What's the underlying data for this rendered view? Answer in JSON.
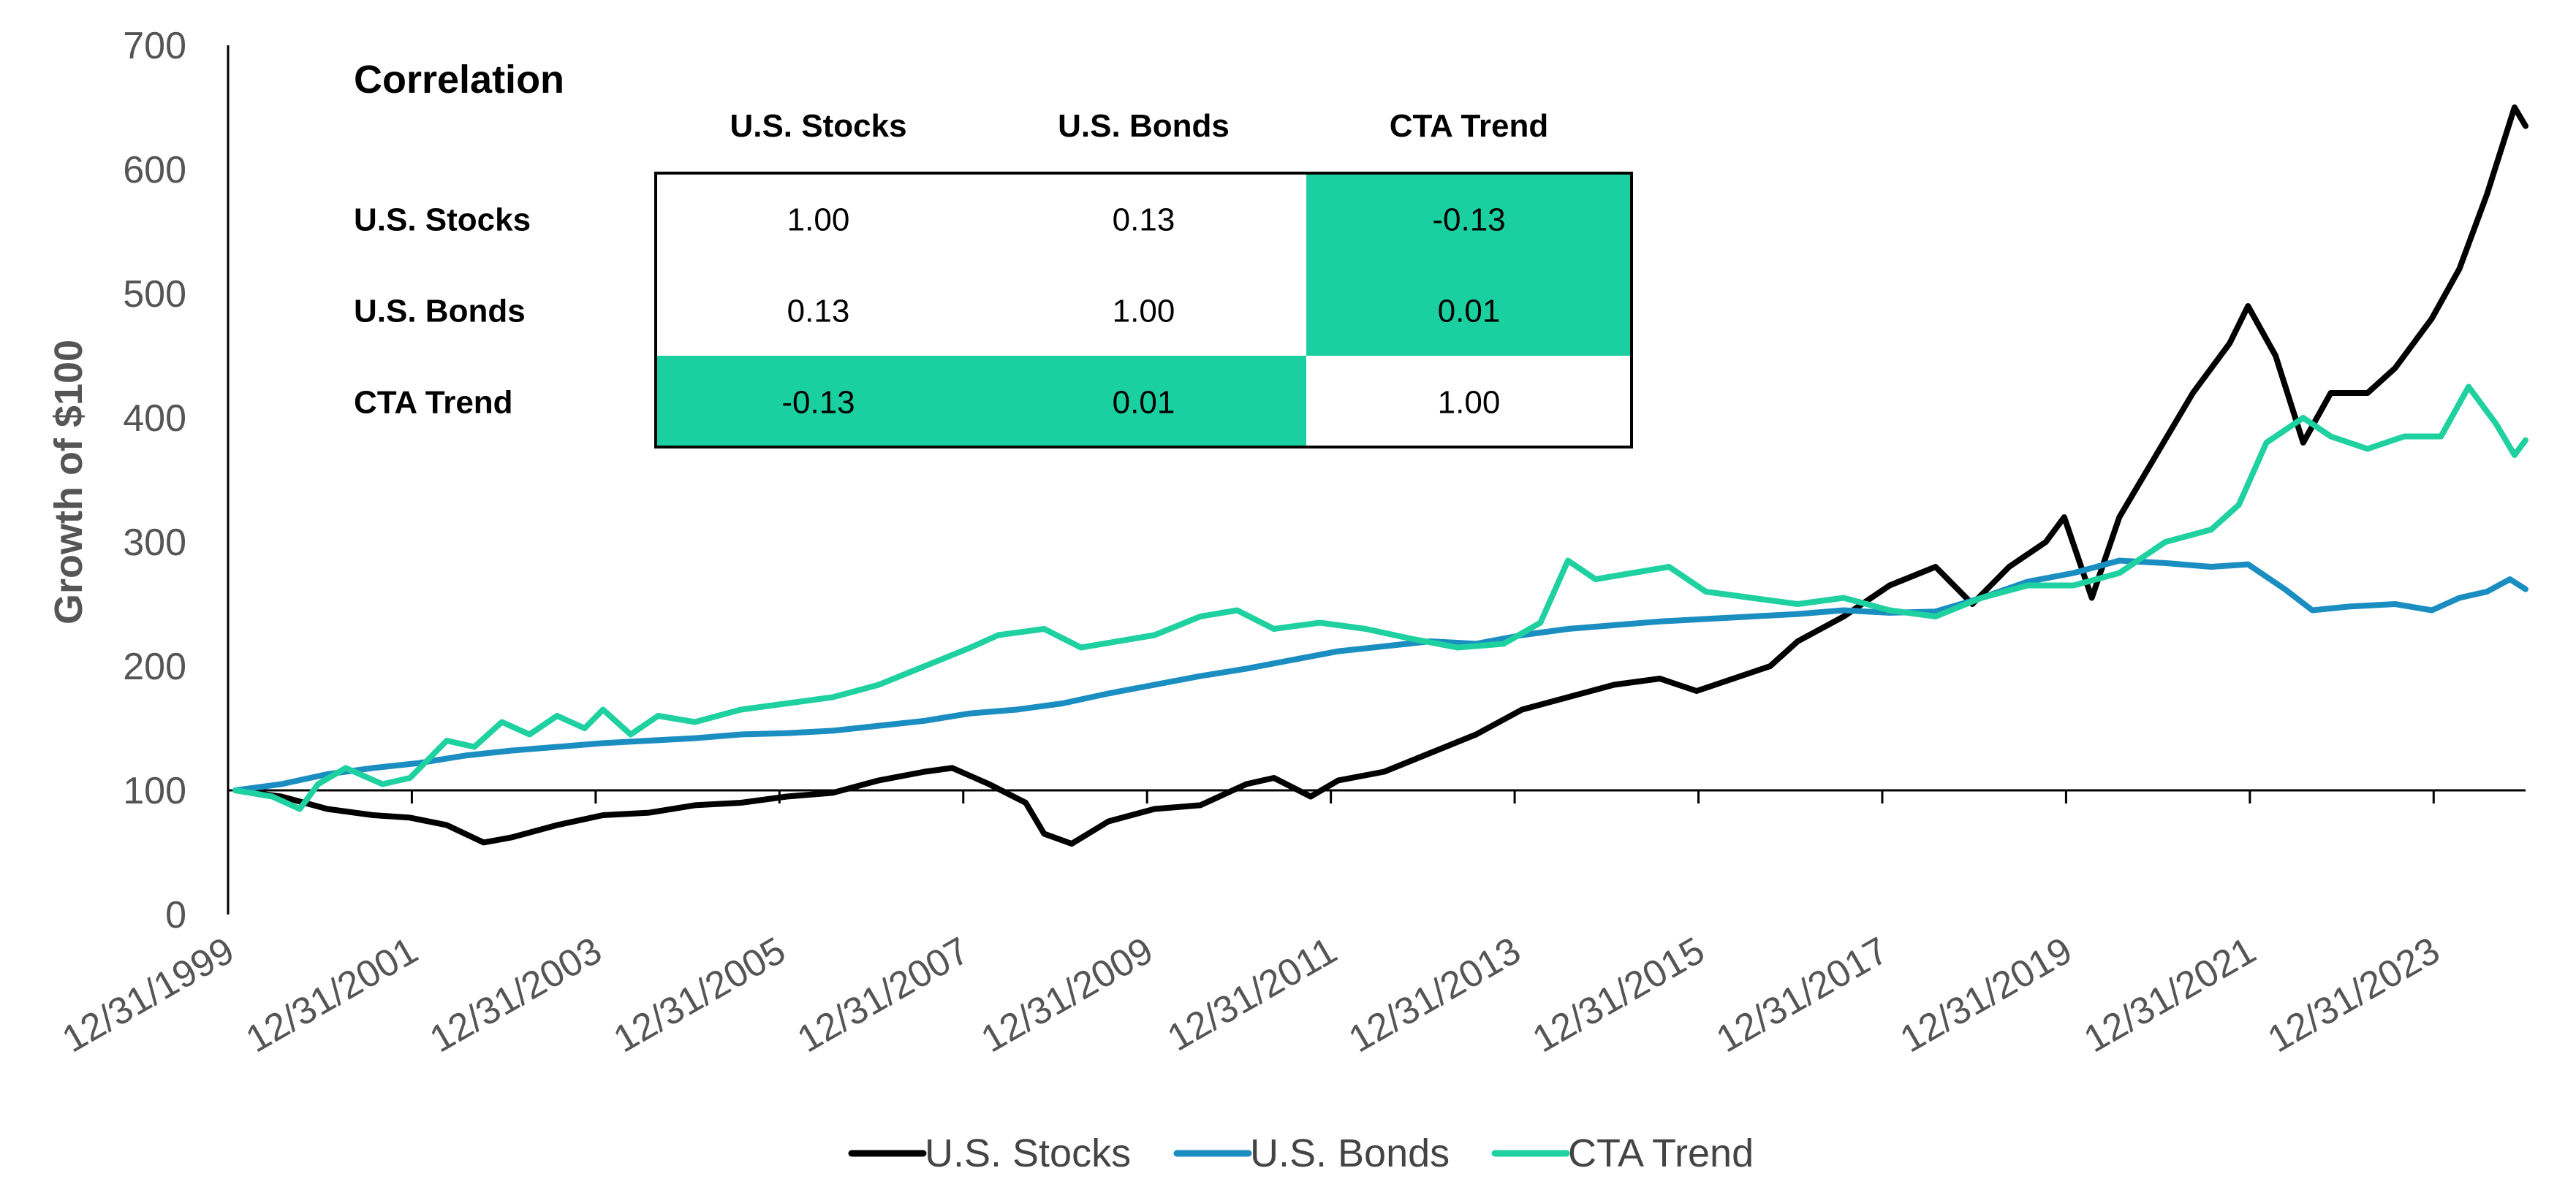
{
  "chart_data": {
    "type": "line",
    "ylabel": "Growth of $100",
    "ylim": [
      0,
      700
    ],
    "yticks": [
      "0",
      "100",
      "200",
      "300",
      "400",
      "500",
      "600",
      "700"
    ],
    "x_start": 1999.92,
    "x_end": 2024.92,
    "xtick_labels": [
      "12/31/1999",
      "12/31/2001",
      "12/31/2003",
      "12/31/2005",
      "12/31/2007",
      "12/31/2009",
      "12/31/2011",
      "12/31/2013",
      "12/31/2015",
      "12/31/2017",
      "12/31/2019",
      "12/31/2021",
      "12/31/2023"
    ],
    "legend_position": "bottom",
    "series": [
      {
        "name": "U.S. Stocks",
        "color": "#000000",
        "points": [
          [
            2000.0,
            100
          ],
          [
            2000.5,
            95
          ],
          [
            2001.0,
            85
          ],
          [
            2001.5,
            80
          ],
          [
            2001.9,
            78
          ],
          [
            2002.3,
            72
          ],
          [
            2002.7,
            58
          ],
          [
            2003.0,
            62
          ],
          [
            2003.5,
            72
          ],
          [
            2004.0,
            80
          ],
          [
            2004.5,
            82
          ],
          [
            2005.0,
            88
          ],
          [
            2005.5,
            90
          ],
          [
            2006.0,
            95
          ],
          [
            2006.5,
            98
          ],
          [
            2007.0,
            108
          ],
          [
            2007.5,
            115
          ],
          [
            2007.8,
            118
          ],
          [
            2008.2,
            105
          ],
          [
            2008.6,
            90
          ],
          [
            2008.8,
            65
          ],
          [
            2009.1,
            57
          ],
          [
            2009.5,
            75
          ],
          [
            2010.0,
            85
          ],
          [
            2010.5,
            88
          ],
          [
            2011.0,
            105
          ],
          [
            2011.3,
            110
          ],
          [
            2011.7,
            95
          ],
          [
            2012.0,
            108
          ],
          [
            2012.5,
            115
          ],
          [
            2013.0,
            130
          ],
          [
            2013.5,
            145
          ],
          [
            2014.0,
            165
          ],
          [
            2014.5,
            175
          ],
          [
            2015.0,
            185
          ],
          [
            2015.5,
            190
          ],
          [
            2015.9,
            180
          ],
          [
            2016.3,
            190
          ],
          [
            2016.7,
            200
          ],
          [
            2017.0,
            220
          ],
          [
            2017.5,
            240
          ],
          [
            2018.0,
            265
          ],
          [
            2018.5,
            280
          ],
          [
            2018.9,
            250
          ],
          [
            2019.3,
            280
          ],
          [
            2019.7,
            300
          ],
          [
            2019.9,
            320
          ],
          [
            2020.2,
            255
          ],
          [
            2020.5,
            320
          ],
          [
            2020.9,
            370
          ],
          [
            2021.3,
            420
          ],
          [
            2021.7,
            460
          ],
          [
            2021.9,
            490
          ],
          [
            2022.2,
            450
          ],
          [
            2022.5,
            380
          ],
          [
            2022.8,
            420
          ],
          [
            2023.2,
            420
          ],
          [
            2023.5,
            440
          ],
          [
            2023.9,
            480
          ],
          [
            2024.2,
            520
          ],
          [
            2024.5,
            580
          ],
          [
            2024.8,
            650
          ],
          [
            2024.92,
            635
          ]
        ]
      },
      {
        "name": "U.S. Bonds",
        "color": "#1b8ec1",
        "points": [
          [
            2000.0,
            100
          ],
          [
            2000.5,
            105
          ],
          [
            2001.0,
            113
          ],
          [
            2001.5,
            118
          ],
          [
            2002.0,
            122
          ],
          [
            2002.5,
            128
          ],
          [
            2003.0,
            132
          ],
          [
            2003.5,
            135
          ],
          [
            2004.0,
            138
          ],
          [
            2004.5,
            140
          ],
          [
            2005.0,
            142
          ],
          [
            2005.5,
            145
          ],
          [
            2006.0,
            146
          ],
          [
            2006.5,
            148
          ],
          [
            2007.0,
            152
          ],
          [
            2007.5,
            156
          ],
          [
            2008.0,
            162
          ],
          [
            2008.5,
            165
          ],
          [
            2009.0,
            170
          ],
          [
            2009.5,
            178
          ],
          [
            2010.0,
            185
          ],
          [
            2010.5,
            192
          ],
          [
            2011.0,
            198
          ],
          [
            2011.5,
            205
          ],
          [
            2012.0,
            212
          ],
          [
            2012.5,
            216
          ],
          [
            2013.0,
            220
          ],
          [
            2013.5,
            218
          ],
          [
            2014.0,
            225
          ],
          [
            2014.5,
            230
          ],
          [
            2015.0,
            233
          ],
          [
            2015.5,
            236
          ],
          [
            2016.0,
            238
          ],
          [
            2016.5,
            240
          ],
          [
            2017.0,
            242
          ],
          [
            2017.5,
            245
          ],
          [
            2018.0,
            243
          ],
          [
            2018.5,
            244
          ],
          [
            2019.0,
            255
          ],
          [
            2019.5,
            268
          ],
          [
            2020.0,
            275
          ],
          [
            2020.5,
            285
          ],
          [
            2021.0,
            283
          ],
          [
            2021.5,
            280
          ],
          [
            2021.9,
            282
          ],
          [
            2022.3,
            262
          ],
          [
            2022.6,
            245
          ],
          [
            2023.0,
            248
          ],
          [
            2023.5,
            250
          ],
          [
            2023.9,
            245
          ],
          [
            2024.2,
            255
          ],
          [
            2024.5,
            260
          ],
          [
            2024.75,
            270
          ],
          [
            2024.92,
            262
          ]
        ]
      },
      {
        "name": "CTA Trend",
        "color": "#1fd1a0",
        "points": [
          [
            2000.0,
            100
          ],
          [
            2000.4,
            95
          ],
          [
            2000.7,
            85
          ],
          [
            2000.9,
            105
          ],
          [
            2001.2,
            118
          ],
          [
            2001.6,
            105
          ],
          [
            2001.9,
            110
          ],
          [
            2002.3,
            140
          ],
          [
            2002.6,
            135
          ],
          [
            2002.9,
            155
          ],
          [
            2003.2,
            145
          ],
          [
            2003.5,
            160
          ],
          [
            2003.8,
            150
          ],
          [
            2004.0,
            165
          ],
          [
            2004.3,
            145
          ],
          [
            2004.6,
            160
          ],
          [
            2005.0,
            155
          ],
          [
            2005.5,
            165
          ],
          [
            2006.0,
            170
          ],
          [
            2006.5,
            175
          ],
          [
            2007.0,
            185
          ],
          [
            2007.5,
            200
          ],
          [
            2008.0,
            215
          ],
          [
            2008.3,
            225
          ],
          [
            2008.8,
            230
          ],
          [
            2009.2,
            215
          ],
          [
            2009.6,
            220
          ],
          [
            2010.0,
            225
          ],
          [
            2010.5,
            240
          ],
          [
            2010.9,
            245
          ],
          [
            2011.3,
            230
          ],
          [
            2011.8,
            235
          ],
          [
            2012.3,
            230
          ],
          [
            2012.8,
            222
          ],
          [
            2013.3,
            215
          ],
          [
            2013.8,
            218
          ],
          [
            2014.2,
            235
          ],
          [
            2014.5,
            285
          ],
          [
            2014.8,
            270
          ],
          [
            2015.2,
            275
          ],
          [
            2015.6,
            280
          ],
          [
            2016.0,
            260
          ],
          [
            2016.5,
            255
          ],
          [
            2017.0,
            250
          ],
          [
            2017.5,
            255
          ],
          [
            2018.0,
            245
          ],
          [
            2018.5,
            240
          ],
          [
            2019.0,
            255
          ],
          [
            2019.5,
            265
          ],
          [
            2020.0,
            265
          ],
          [
            2020.5,
            275
          ],
          [
            2021.0,
            300
          ],
          [
            2021.5,
            310
          ],
          [
            2021.8,
            330
          ],
          [
            2022.1,
            380
          ],
          [
            2022.5,
            400
          ],
          [
            2022.8,
            385
          ],
          [
            2023.2,
            375
          ],
          [
            2023.6,
            385
          ],
          [
            2024.0,
            385
          ],
          [
            2024.3,
            425
          ],
          [
            2024.6,
            395
          ],
          [
            2024.8,
            370
          ],
          [
            2024.92,
            382
          ]
        ]
      }
    ]
  },
  "correlation": {
    "title": "Correlation",
    "columns": [
      "U.S. Stocks",
      "U.S. Bonds",
      "CTA Trend"
    ],
    "rows": [
      {
        "label": "U.S. Stocks",
        "values": [
          "1.00",
          "0.13",
          "-0.13"
        ]
      },
      {
        "label": "U.S. Bonds",
        "values": [
          "0.13",
          "1.00",
          "0.01"
        ]
      },
      {
        "label": "CTA Trend",
        "values": [
          "-0.13",
          "0.01",
          "1.00"
        ]
      }
    ],
    "highlight_cells": [
      [
        0,
        2
      ],
      [
        1,
        2
      ],
      [
        2,
        0
      ],
      [
        2,
        1
      ]
    ],
    "highlight_color": "#1acfa0"
  }
}
